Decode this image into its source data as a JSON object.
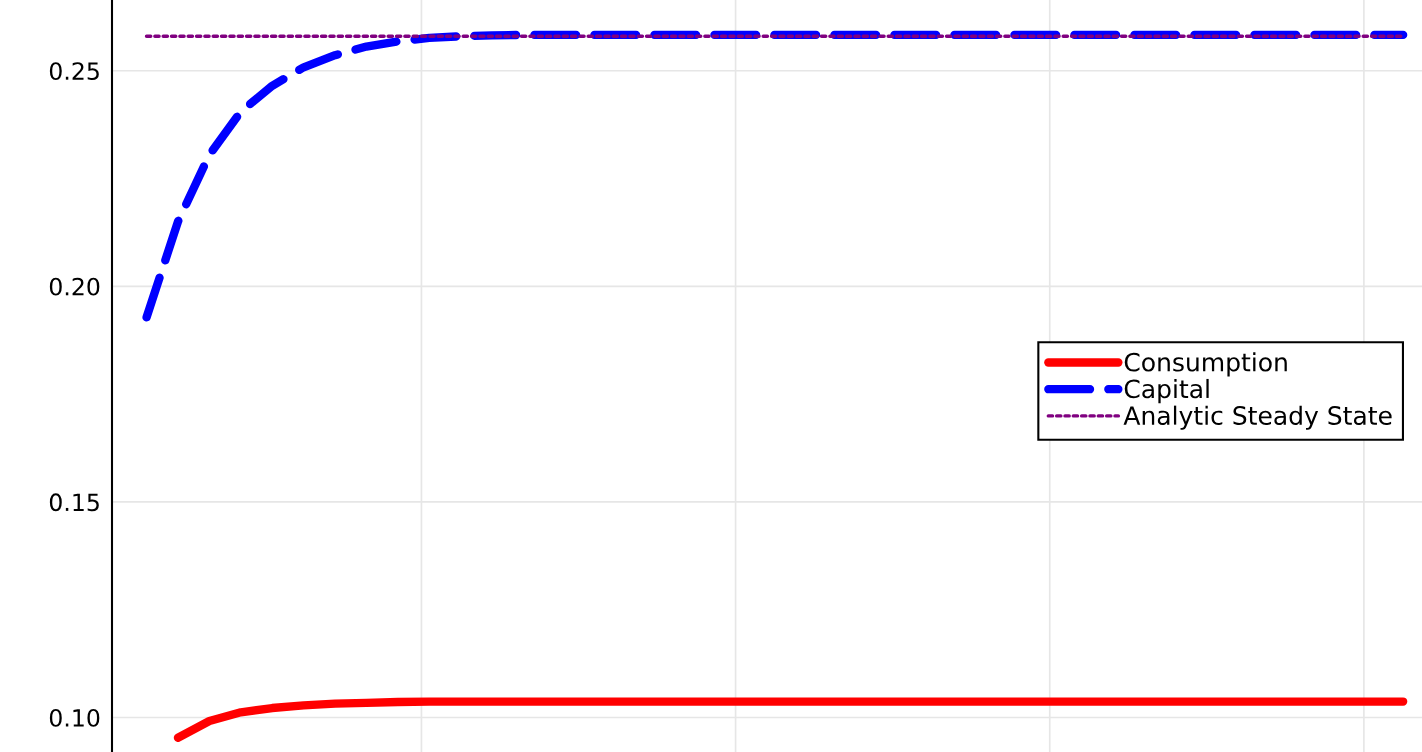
{
  "chart_data": {
    "type": "line",
    "categories": [
      null,
      null,
      null,
      null,
      null,
      null,
      null,
      null,
      null,
      null,
      null,
      null,
      null,
      null,
      null,
      null,
      null,
      null,
      null,
      null,
      null,
      null,
      null,
      null,
      null,
      null,
      null,
      null,
      null,
      null,
      null,
      null,
      null,
      null,
      null,
      null,
      null,
      null,
      null,
      null,
      null
    ],
    "series": [
      {
        "name": "Consumption",
        "color": "#ff0000",
        "line_style": "solid",
        "values": [
          null,
          0.0953,
          0.0992,
          0.1012,
          0.1022,
          0.1028,
          0.1032,
          0.1034,
          0.1036,
          0.1037,
          0.1037,
          0.1037,
          0.1037,
          0.1037,
          0.1037,
          0.1037,
          0.1037,
          0.1037,
          0.1037,
          0.1037,
          0.1037,
          0.1037,
          0.1037,
          0.1037,
          0.1037,
          0.1037,
          0.1037,
          0.1037,
          0.1037,
          0.1037,
          0.1037,
          0.1037,
          0.1037,
          0.1037,
          0.1037,
          0.1037,
          0.1037,
          0.1037,
          0.1037,
          0.1037,
          0.1037
        ]
      },
      {
        "name": "Capital",
        "color": "#0000ff",
        "line_style": "dashed",
        "values": [
          0.1928,
          0.215,
          0.2305,
          0.2405,
          0.2465,
          0.2508,
          0.2536,
          0.2556,
          0.2568,
          0.2576,
          0.258,
          0.2582,
          0.2583,
          0.2583,
          0.2583,
          0.2583,
          0.2583,
          0.2583,
          0.2583,
          0.2583,
          0.2583,
          0.2583,
          0.2583,
          0.2583,
          0.2583,
          0.2583,
          0.2583,
          0.2583,
          0.2583,
          0.2583,
          0.2583,
          0.2583,
          0.2583,
          0.2583,
          0.2583,
          0.2583,
          0.2583,
          0.2583,
          0.2583,
          0.2583,
          0.2583
        ]
      },
      {
        "name": "Analytic Steady State",
        "color": "#800080",
        "line_style": "dotted",
        "values": [
          0.258,
          0.258,
          0.258,
          0.258,
          0.258,
          0.258,
          0.258,
          0.258,
          0.258,
          0.258,
          0.258,
          0.258,
          0.258,
          0.258,
          0.258,
          0.258,
          0.258,
          0.258,
          0.258,
          0.258,
          0.258,
          0.258,
          0.258,
          0.258,
          0.258,
          0.258,
          0.258,
          0.258,
          0.258,
          0.258,
          0.258,
          0.258,
          0.258,
          0.258,
          0.258,
          0.258,
          0.258,
          0.258,
          0.258,
          0.258,
          0.258
        ]
      }
    ],
    "ylim": [
      0.092,
      0.2664
    ],
    "yticks": [
      {
        "value": 0.1,
        "label": "0.10"
      },
      {
        "value": 0.15,
        "label": "0.15"
      },
      {
        "value": 0.2,
        "label": "0.20"
      },
      {
        "value": 0.25,
        "label": "0.25"
      }
    ],
    "grid": true,
    "legend": "right",
    "marker": "none"
  }
}
